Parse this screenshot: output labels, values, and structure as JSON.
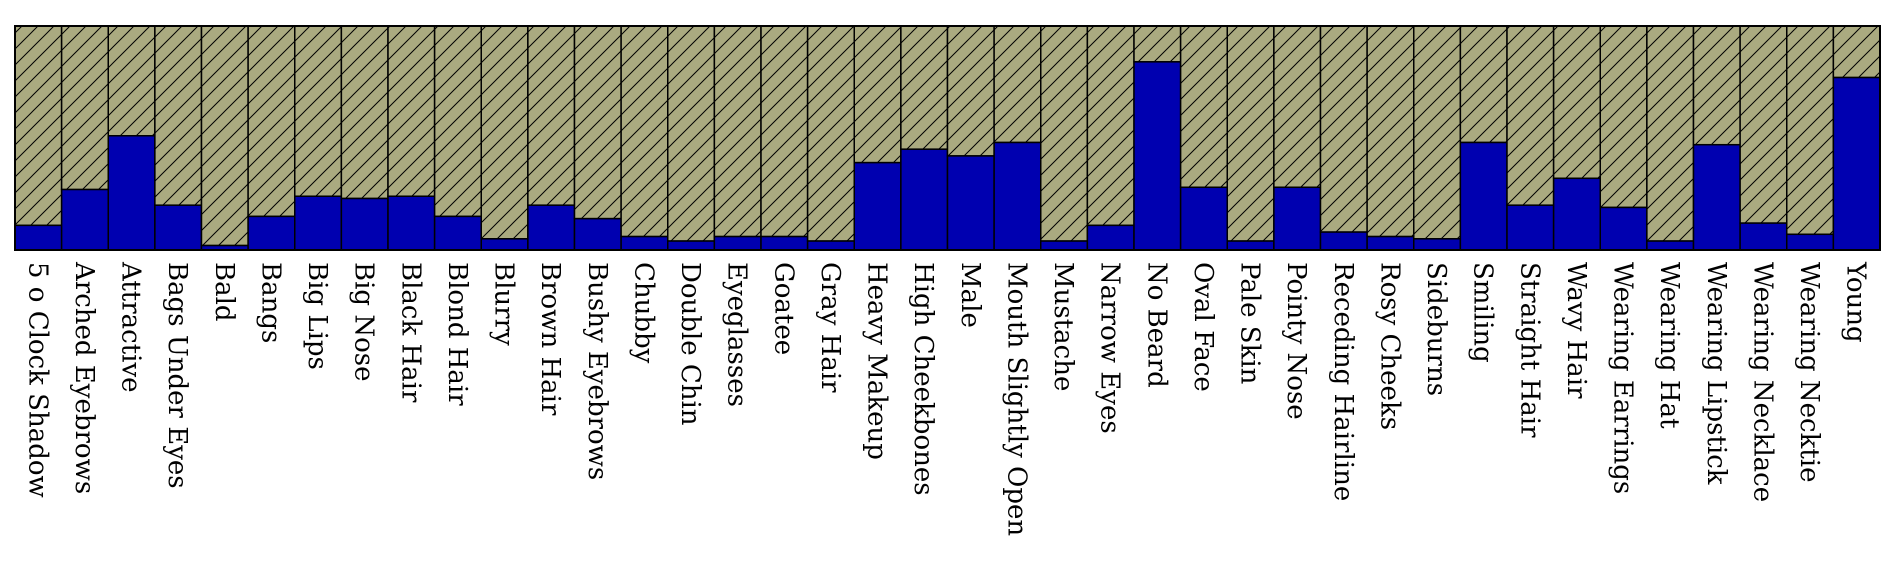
{
  "chart_data": {
    "type": "bar",
    "stacked": true,
    "ylim": [
      0,
      1
    ],
    "grid": false,
    "categories": [
      "5 o Clock Shadow",
      "Arched Eyebrows",
      "Attractive",
      "Bags Under Eyes",
      "Bald",
      "Bangs",
      "Big Lips",
      "Big Nose",
      "Black Hair",
      "Blond Hair",
      "Blurry",
      "Brown Hair",
      "Bushy Eyebrows",
      "Chubby",
      "Double Chin",
      "Eyeglasses",
      "Goatee",
      "Gray Hair",
      "Heavy Makeup",
      "High Cheekbones",
      "Male",
      "Mouth Slightly Open",
      "Mustache",
      "Narrow Eyes",
      "No Beard",
      "Oval Face",
      "Pale Skin",
      "Pointy Nose",
      "Receding Hairline",
      "Rosy Cheeks",
      "Sideburns",
      "Smiling",
      "Straight Hair",
      "Wavy Hair",
      "Wearing Earrings",
      "Wearing Hat",
      "Wearing Lipstick",
      "Wearing Necklace",
      "Wearing Necktie",
      "Young"
    ],
    "series": [
      {
        "values": [
          0.11,
          0.27,
          0.51,
          0.2,
          0.02,
          0.15,
          0.24,
          0.23,
          0.24,
          0.15,
          0.05,
          0.2,
          0.14,
          0.06,
          0.04,
          0.06,
          0.06,
          0.04,
          0.39,
          0.45,
          0.42,
          0.48,
          0.04,
          0.11,
          0.84,
          0.28,
          0.04,
          0.28,
          0.08,
          0.06,
          0.05,
          0.48,
          0.2,
          0.32,
          0.19,
          0.04,
          0.47,
          0.12,
          0.07,
          0.77
        ]
      },
      {
        "values": [
          0.89,
          0.73,
          0.49,
          0.8,
          0.98,
          0.85,
          0.76,
          0.77,
          0.76,
          0.85,
          0.95,
          0.8,
          0.86,
          0.94,
          0.96,
          0.94,
          0.94,
          0.96,
          0.61,
          0.55,
          0.58,
          0.52,
          0.96,
          0.89,
          0.16,
          0.72,
          0.96,
          0.72,
          0.92,
          0.94,
          0.95,
          0.52,
          0.8,
          0.68,
          0.81,
          0.96,
          0.53,
          0.88,
          0.93,
          0.23
        ]
      }
    ],
    "colors": {
      "positive": "#0000b0",
      "negative": "#aaaa80",
      "hatch": "#000000",
      "axis": "#000000"
    }
  }
}
